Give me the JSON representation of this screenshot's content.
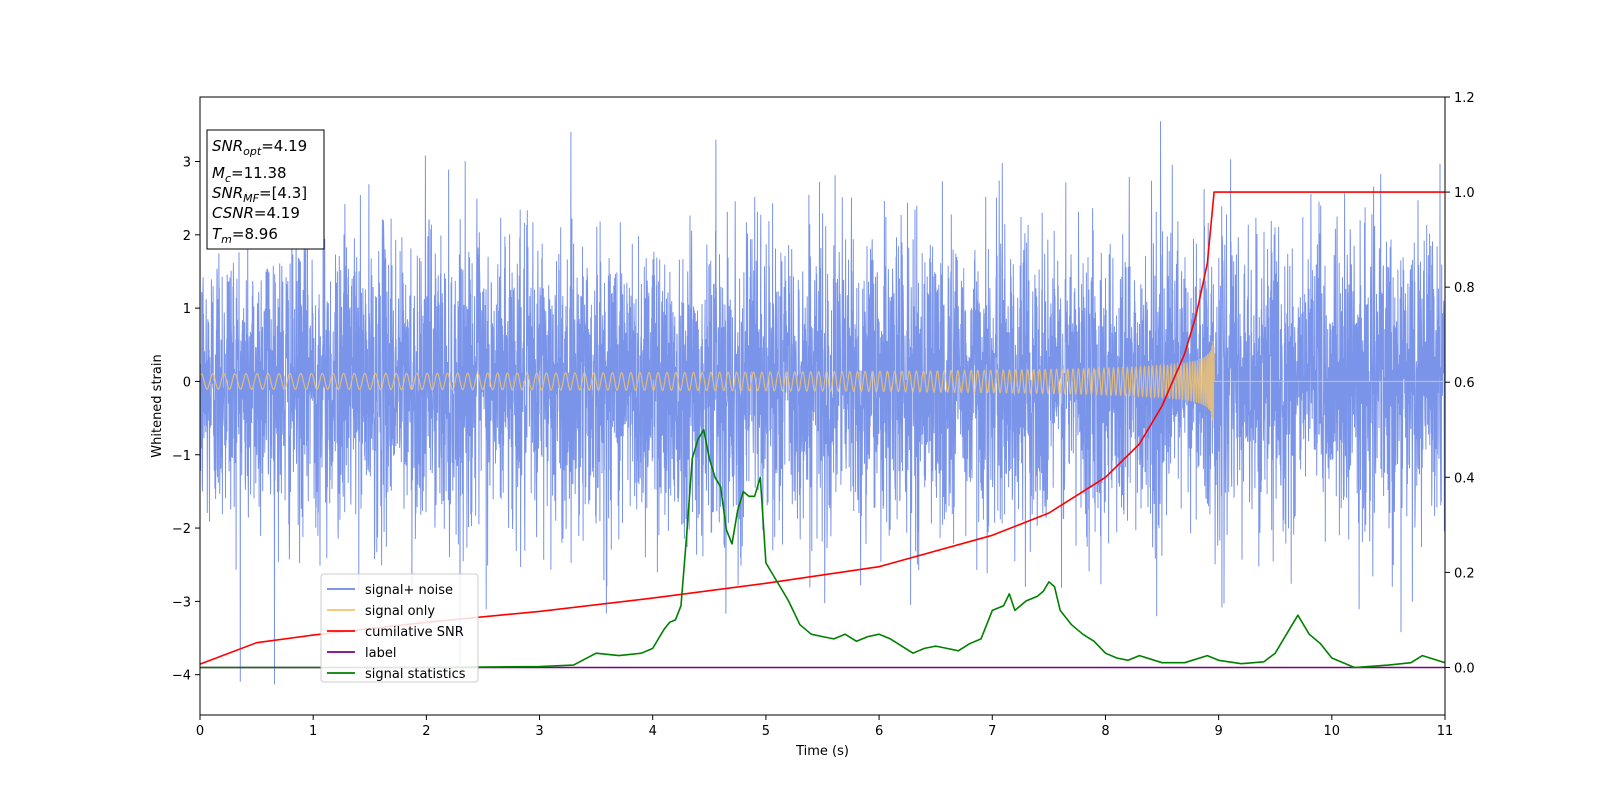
{
  "chart_data": {
    "type": "line",
    "xlabel": "Time (s)",
    "ylabel": "Whitened strain",
    "xlim": [
      0,
      11
    ],
    "ylim_left": [
      -4.55,
      3.88
    ],
    "ylim_right": [
      -0.1,
      1.2
    ],
    "x_ticks": [
      "0",
      "1",
      "2",
      "3",
      "4",
      "5",
      "6",
      "7",
      "8",
      "9",
      "10",
      "11"
    ],
    "y_left_ticks": [
      "3",
      "2",
      "1",
      "0",
      "−1",
      "−2",
      "−3",
      "−4"
    ],
    "y_right_ticks": [
      "1.2",
      "1.0",
      "0.8",
      "0.6",
      "0.4",
      "0.2",
      "0.0"
    ],
    "grid": false,
    "legend_position": "lower-left",
    "info_box": {
      "snr_opt": "=4.19",
      "mc": "=11.38",
      "snr_mf": "=[4.3]",
      "csnr": "=4.19",
      "tm": "=8.96"
    },
    "series": [
      {
        "name": "signal+ noise",
        "color": "#6b88e8",
        "axis": "left",
        "description": "whitened strain, Gaussian-like noise ~ N(0,1) sampled densely from t=0 to t=11 with peaks up to about 3.5 and dips down to about -4.2"
      },
      {
        "name": "signal only",
        "color": "#f5c46a",
        "axis": "left",
        "chirp": {
          "t_start": 0,
          "t_merge": 8.96,
          "peak_amplitude": 0.72
        }
      },
      {
        "name": "cumilative SNR",
        "color": "#ff0000",
        "axis": "right",
        "x": [
          0,
          0.5,
          1,
          2,
          3,
          4,
          5,
          6,
          7,
          7.5,
          8,
          8.3,
          8.5,
          8.7,
          8.8,
          8.9,
          8.96,
          11
        ],
        "y": [
          0.007,
          0.052,
          0.068,
          0.095,
          0.118,
          0.146,
          0.177,
          0.212,
          0.278,
          0.325,
          0.4,
          0.47,
          0.55,
          0.66,
          0.74,
          0.85,
          1.0,
          1.0
        ]
      },
      {
        "name": "label",
        "color": "#800080",
        "axis": "right",
        "x": [
          0,
          11
        ],
        "y": [
          0.0,
          0.0
        ]
      },
      {
        "name": "signal statistics",
        "color": "#008000",
        "axis": "right",
        "x": [
          0,
          1,
          2,
          3,
          3.3,
          3.5,
          3.7,
          3.9,
          4.0,
          4.1,
          4.15,
          4.2,
          4.25,
          4.3,
          4.35,
          4.4,
          4.45,
          4.5,
          4.55,
          4.6,
          4.65,
          4.7,
          4.75,
          4.8,
          4.85,
          4.9,
          4.95,
          5.0,
          5.1,
          5.15,
          5.2,
          5.3,
          5.4,
          5.5,
          5.6,
          5.7,
          5.8,
          5.9,
          6.0,
          6.1,
          6.2,
          6.3,
          6.4,
          6.5,
          6.6,
          6.7,
          6.8,
          6.9,
          7.0,
          7.1,
          7.15,
          7.2,
          7.3,
          7.4,
          7.45,
          7.5,
          7.55,
          7.6,
          7.7,
          7.8,
          7.9,
          8.0,
          8.1,
          8.2,
          8.3,
          8.5,
          8.7,
          8.9,
          9.0,
          9.2,
          9.4,
          9.5,
          9.6,
          9.7,
          9.8,
          9.9,
          10.0,
          10.2,
          10.5,
          10.7,
          10.8,
          11.0
        ],
        "y": [
          0.0,
          0.0,
          0.0,
          0.002,
          0.005,
          0.03,
          0.025,
          0.03,
          0.04,
          0.08,
          0.095,
          0.1,
          0.13,
          0.28,
          0.44,
          0.48,
          0.5,
          0.44,
          0.4,
          0.38,
          0.29,
          0.26,
          0.33,
          0.37,
          0.36,
          0.36,
          0.4,
          0.22,
          0.18,
          0.16,
          0.14,
          0.09,
          0.07,
          0.065,
          0.06,
          0.07,
          0.055,
          0.065,
          0.07,
          0.06,
          0.045,
          0.03,
          0.04,
          0.045,
          0.04,
          0.035,
          0.05,
          0.06,
          0.12,
          0.13,
          0.155,
          0.12,
          0.14,
          0.15,
          0.16,
          0.18,
          0.17,
          0.12,
          0.09,
          0.07,
          0.055,
          0.03,
          0.02,
          0.015,
          0.025,
          0.01,
          0.01,
          0.025,
          0.015,
          0.008,
          0.012,
          0.03,
          0.07,
          0.11,
          0.07,
          0.05,
          0.02,
          0.0,
          0.005,
          0.01,
          0.025,
          0.01
        ]
      }
    ]
  }
}
